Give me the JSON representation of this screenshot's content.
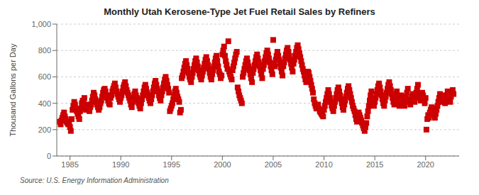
{
  "chart_data": {
    "type": "scatter",
    "title": "Monthly Utah Kerosene-Type Jet Fuel Retail Sales by Refiners",
    "ylabel": "Thousand Gallons per Day",
    "annotations": [
      "Source: U.S. Energy Information Administration"
    ],
    "color": "#CC0000",
    "marker": "square",
    "grid": true,
    "xlim": [
      1983.7,
      2023.3
    ],
    "ylim": [
      0,
      1000
    ],
    "xticks": [
      1985,
      1990,
      1995,
      2000,
      2005,
      2010,
      2015,
      2020
    ],
    "yticks": [
      0,
      200,
      400,
      600,
      800,
      {
        "value": 1000,
        "label": "1,000"
      }
    ],
    "x": [
      1984.0,
      1984.083,
      1984.167,
      1984.25,
      1984.333,
      1984.417,
      1984.5,
      1984.583,
      1984.667,
      1984.75,
      1984.833,
      1984.917,
      1985.0,
      1985.083,
      1985.167,
      1985.25,
      1985.333,
      1985.417,
      1985.5,
      1985.583,
      1985.667,
      1985.75,
      1985.833,
      1985.917,
      1986.0,
      1986.083,
      1986.167,
      1986.25,
      1986.333,
      1986.417,
      1986.5,
      1986.583,
      1986.667,
      1986.75,
      1986.833,
      1986.917,
      1987.0,
      1987.083,
      1987.167,
      1987.25,
      1987.333,
      1987.417,
      1987.5,
      1987.583,
      1987.667,
      1987.75,
      1987.833,
      1987.917,
      1988.0,
      1988.083,
      1988.167,
      1988.25,
      1988.333,
      1988.417,
      1988.5,
      1988.583,
      1988.667,
      1988.75,
      1988.833,
      1988.917,
      1989.0,
      1989.083,
      1989.167,
      1989.25,
      1989.333,
      1989.417,
      1989.5,
      1989.583,
      1989.667,
      1989.75,
      1989.833,
      1989.917,
      1990.0,
      1990.083,
      1990.167,
      1990.25,
      1990.333,
      1990.417,
      1990.5,
      1990.583,
      1990.667,
      1990.75,
      1990.833,
      1990.917,
      1991.0,
      1991.083,
      1991.167,
      1991.25,
      1991.333,
      1991.417,
      1991.5,
      1991.583,
      1991.667,
      1991.75,
      1991.833,
      1991.917,
      1992.0,
      1992.083,
      1992.167,
      1992.25,
      1992.333,
      1992.417,
      1992.5,
      1992.583,
      1992.667,
      1992.75,
      1992.833,
      1992.917,
      1993.0,
      1993.083,
      1993.167,
      1993.25,
      1993.333,
      1993.417,
      1993.5,
      1993.583,
      1993.667,
      1993.75,
      1993.833,
      1993.917,
      1994.0,
      1994.083,
      1994.167,
      1994.25,
      1994.333,
      1994.417,
      1994.5,
      1994.583,
      1994.667,
      1994.75,
      1994.833,
      1994.917,
      1995.0,
      1995.083,
      1995.167,
      1995.25,
      1995.333,
      1995.417,
      1995.5,
      1995.583,
      1995.667,
      1995.75,
      1995.833,
      1995.917,
      1996.0,
      1996.083,
      1996.167,
      1996.25,
      1996.333,
      1996.417,
      1996.5,
      1996.583,
      1996.667,
      1996.75,
      1996.833,
      1996.917,
      1997.0,
      1997.083,
      1997.167,
      1997.25,
      1997.333,
      1997.417,
      1997.5,
      1997.583,
      1997.667,
      1997.75,
      1997.833,
      1997.917,
      1998.0,
      1998.083,
      1998.167,
      1998.25,
      1998.333,
      1998.417,
      1998.5,
      1998.583,
      1998.667,
      1998.75,
      1998.833,
      1998.917,
      1999.0,
      1999.083,
      1999.167,
      1999.25,
      1999.333,
      1999.417,
      1999.5,
      1999.583,
      1999.667,
      1999.75,
      1999.833,
      1999.917,
      2000.0,
      2000.083,
      2000.167,
      2000.25,
      2000.333,
      2000.417,
      2000.5,
      2000.583,
      2000.667,
      2000.75,
      2000.833,
      2000.917,
      2001.0,
      2001.083,
      2001.167,
      2001.25,
      2001.333,
      2001.417,
      2001.5,
      2001.583,
      2001.667,
      2001.75,
      2001.833,
      2001.917,
      2002.0,
      2002.083,
      2002.167,
      2002.25,
      2002.333,
      2002.417,
      2002.5,
      2002.583,
      2002.667,
      2002.75,
      2002.833,
      2002.917,
      2003.0,
      2003.083,
      2003.167,
      2003.25,
      2003.333,
      2003.417,
      2003.5,
      2003.583,
      2003.667,
      2003.75,
      2003.833,
      2003.917,
      2004.0,
      2004.083,
      2004.167,
      2004.25,
      2004.333,
      2004.417,
      2004.5,
      2004.583,
      2004.667,
      2004.75,
      2004.833,
      2004.917,
      2005.0,
      2005.083,
      2005.167,
      2005.25,
      2005.333,
      2005.417,
      2005.5,
      2005.583,
      2005.667,
      2005.75,
      2005.833,
      2005.917,
      2006.0,
      2006.083,
      2006.167,
      2006.25,
      2006.333,
      2006.417,
      2006.5,
      2006.583,
      2006.667,
      2006.75,
      2006.833,
      2006.917,
      2007.0,
      2007.083,
      2007.167,
      2007.25,
      2007.333,
      2007.417,
      2007.5,
      2007.583,
      2007.667,
      2007.75,
      2007.833,
      2007.917,
      2008.0,
      2008.083,
      2008.167,
      2008.25,
      2008.333,
      2008.417,
      2008.5,
      2008.583,
      2008.667,
      2008.75,
      2008.833,
      2008.917,
      2009.0,
      2009.083,
      2009.167,
      2009.25,
      2009.333,
      2009.417,
      2009.5,
      2009.583,
      2009.667,
      2009.75,
      2009.833,
      2009.917,
      2010.0,
      2010.083,
      2010.167,
      2010.25,
      2010.333,
      2010.417,
      2010.5,
      2010.583,
      2010.667,
      2010.75,
      2010.833,
      2010.917,
      2011.0,
      2011.083,
      2011.167,
      2011.25,
      2011.333,
      2011.417,
      2011.5,
      2011.583,
      2011.667,
      2011.75,
      2011.833,
      2011.917,
      2012.0,
      2012.083,
      2012.167,
      2012.25,
      2012.333,
      2012.417,
      2012.5,
      2012.583,
      2012.667,
      2012.75,
      2012.833,
      2012.917,
      2013.0,
      2013.083,
      2013.167,
      2013.25,
      2013.333,
      2013.417,
      2013.5,
      2013.583,
      2013.667,
      2013.75,
      2013.833,
      2013.917,
      2014.0,
      2014.083,
      2014.167,
      2014.25,
      2014.333,
      2014.417,
      2014.5,
      2014.583,
      2014.667,
      2014.75,
      2014.833,
      2014.917,
      2015.0,
      2015.083,
      2015.167,
      2015.25,
      2015.333,
      2015.417,
      2015.5,
      2015.583,
      2015.667,
      2015.75,
      2015.833,
      2015.917,
      2016.0,
      2016.083,
      2016.167,
      2016.25,
      2016.333,
      2016.417,
      2016.5,
      2016.583,
      2016.667,
      2016.75,
      2016.833,
      2016.917,
      2017.0,
      2017.083,
      2017.167,
      2017.25,
      2017.333,
      2017.417,
      2017.5,
      2017.583,
      2017.667,
      2017.75,
      2017.833,
      2017.917,
      2018.0,
      2018.083,
      2018.167,
      2018.25,
      2018.333,
      2018.417,
      2018.5,
      2018.583,
      2018.667,
      2018.75,
      2018.833,
      2018.917,
      2019.0,
      2019.083,
      2019.167,
      2019.25,
      2019.333,
      2019.417,
      2019.5,
      2019.583,
      2019.667,
      2019.75,
      2019.833,
      2019.917,
      2020.0,
      2020.083,
      2020.167,
      2020.25,
      2020.333,
      2020.417,
      2020.5,
      2020.583,
      2020.667,
      2020.75,
      2020.833,
      2020.917,
      2021.0,
      2021.083,
      2021.167,
      2021.25,
      2021.333,
      2021.417,
      2021.5,
      2021.583,
      2021.667,
      2021.75,
      2021.833,
      2021.917,
      2022.0,
      2022.083,
      2022.167,
      2022.25,
      2022.333,
      2022.417,
      2022.5,
      2022.583,
      2022.667,
      2022.75
    ],
    "values": [
      260,
      240,
      270,
      290,
      310,
      330,
      300,
      280,
      260,
      250,
      240,
      260,
      220,
      190,
      280,
      350,
      380,
      410,
      390,
      360,
      340,
      320,
      300,
      280,
      340,
      360,
      400,
      420,
      410,
      440,
      380,
      350,
      370,
      390,
      360,
      340,
      370,
      390,
      420,
      450,
      480,
      460,
      430,
      410,
      390,
      370,
      350,
      370,
      400,
      420,
      450,
      480,
      500,
      510,
      490,
      460,
      440,
      420,
      400,
      390,
      440,
      460,
      490,
      510,
      530,
      550,
      520,
      490,
      470,
      450,
      430,
      410,
      440,
      460,
      490,
      520,
      540,
      560,
      530,
      500,
      480,
      460,
      440,
      420,
      390,
      370,
      410,
      440,
      470,
      490,
      460,
      440,
      420,
      400,
      380,
      360,
      400,
      430,
      460,
      490,
      520,
      540,
      510,
      480,
      460,
      440,
      420,
      400,
      430,
      460,
      490,
      520,
      550,
      570,
      540,
      510,
      490,
      460,
      440,
      420,
      460,
      490,
      520,
      550,
      580,
      600,
      570,
      540,
      510,
      480,
      340,
      360,
      380,
      400,
      430,
      460,
      490,
      510,
      480,
      450,
      430,
      410,
      330,
      350,
      590,
      610,
      640,
      670,
      700,
      720,
      690,
      660,
      630,
      600,
      580,
      560,
      600,
      630,
      660,
      690,
      720,
      740,
      710,
      680,
      650,
      620,
      600,
      580,
      610,
      640,
      670,
      700,
      730,
      750,
      720,
      690,
      660,
      630,
      600,
      580,
      620,
      650,
      680,
      710,
      740,
      760,
      720,
      680,
      640,
      620,
      590,
      610,
      770,
      800,
      830,
      760,
      720,
      690,
      660,
      870,
      640,
      620,
      600,
      580,
      650,
      680,
      710,
      740,
      770,
      790,
      520,
      490,
      460,
      440,
      420,
      400,
      600,
      630,
      660,
      690,
      720,
      740,
      710,
      680,
      650,
      620,
      590,
      560,
      630,
      660,
      690,
      720,
      750,
      770,
      740,
      710,
      680,
      650,
      620,
      590,
      660,
      690,
      720,
      750,
      780,
      800,
      770,
      740,
      710,
      680,
      650,
      620,
      880,
      700,
      680,
      730,
      760,
      790,
      760,
      730,
      700,
      670,
      640,
      610,
      680,
      710,
      740,
      770,
      800,
      820,
      790,
      760,
      730,
      700,
      670,
      640,
      700,
      730,
      760,
      790,
      820,
      840,
      810,
      780,
      750,
      720,
      690,
      660,
      640,
      610,
      580,
      560,
      620,
      640,
      630,
      600,
      570,
      540,
      510,
      480,
      430,
      400,
      380,
      360,
      370,
      390,
      360,
      340,
      330,
      320,
      310,
      300,
      350,
      380,
      410,
      440,
      470,
      500,
      470,
      440,
      410,
      380,
      360,
      340,
      380,
      410,
      440,
      470,
      500,
      520,
      490,
      460,
      430,
      400,
      370,
      350,
      390,
      420,
      450,
      480,
      510,
      530,
      500,
      470,
      440,
      410,
      380,
      360,
      340,
      310,
      280,
      260,
      300,
      330,
      310,
      290,
      270,
      250,
      230,
      210,
      190,
      220,
      250,
      300,
      340,
      380,
      420,
      460,
      490,
      430,
      400,
      380,
      410,
      440,
      470,
      500,
      530,
      550,
      520,
      490,
      460,
      430,
      400,
      380,
      420,
      450,
      480,
      510,
      540,
      560,
      530,
      500,
      470,
      440,
      410,
      390,
      430,
      460,
      490,
      420,
      400,
      380,
      430,
      460,
      440,
      420,
      400,
      380,
      420,
      450,
      480,
      510,
      430,
      410,
      390,
      420,
      450,
      470,
      440,
      410,
      450,
      480,
      510,
      540,
      470,
      440,
      420,
      450,
      480,
      460,
      430,
      400,
      440,
      200,
      280,
      310,
      290,
      330,
      350,
      370,
      360,
      340,
      310,
      290,
      320,
      350,
      380,
      410,
      440,
      470,
      440,
      410,
      430,
      460,
      430,
      400,
      430,
      460,
      490,
      470,
      440,
      410,
      450,
      480,
      500,
      470
    ]
  }
}
